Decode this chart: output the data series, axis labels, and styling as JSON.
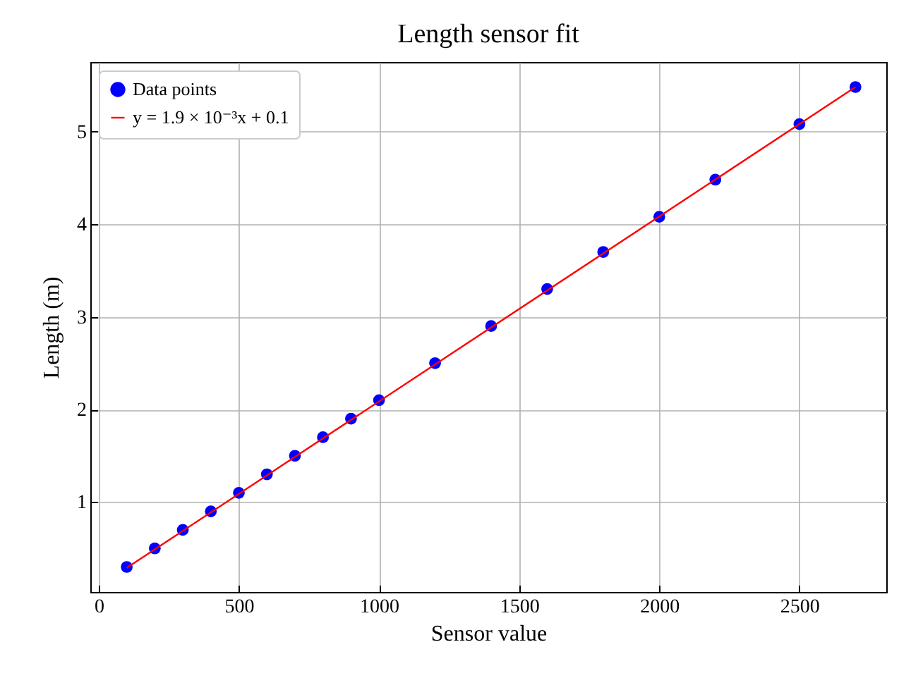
{
  "chart_data": {
    "type": "scatter",
    "title": "Length sensor fit",
    "xlabel": "Sensor value",
    "ylabel": "Length (m)",
    "xlim": [
      -30,
      2810
    ],
    "ylim": [
      0.03,
      5.75
    ],
    "xticks": [
      0,
      500,
      1000,
      1500,
      2000,
      2500
    ],
    "yticks": [
      1,
      2,
      3,
      4,
      5
    ],
    "grid": true,
    "legend": "top left",
    "series": [
      {
        "name": "Data points",
        "marker": "circle",
        "color": "#0000ff",
        "x": [
          100,
          200,
          300,
          400,
          500,
          600,
          700,
          800,
          900,
          1000,
          1200,
          1400,
          1600,
          1800,
          2000,
          2200,
          2500,
          2700
        ],
        "values": [
          0.3,
          0.5,
          0.7,
          0.9,
          1.1,
          1.3,
          1.5,
          1.7,
          1.9,
          2.1,
          2.5,
          2.9,
          3.3,
          3.7,
          4.08,
          4.48,
          5.08,
          5.48
        ]
      },
      {
        "name": "y = 1.9 × 10⁻³x + 0.1",
        "type": "line",
        "color": "#ff0000",
        "line_style": "solid",
        "x": [
          100,
          2700
        ],
        "values": [
          0.29,
          5.48
        ]
      }
    ]
  }
}
